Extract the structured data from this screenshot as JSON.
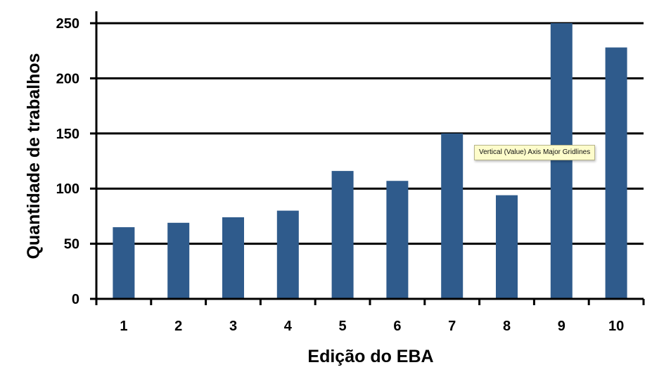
{
  "chart_data": {
    "type": "bar",
    "title": "",
    "xlabel": "Edição do EBA",
    "ylabel": "Quantidade de trabalhos",
    "categories": [
      "1",
      "2",
      "3",
      "4",
      "5",
      "6",
      "7",
      "8",
      "9",
      "10"
    ],
    "series": [
      {
        "values": [
          65,
          69,
          74,
          80,
          116,
          107,
          150,
          94,
          250,
          228
        ]
      }
    ],
    "ylim": [
      0,
      250
    ],
    "yticks": [
      "0",
      "50",
      "100",
      "150",
      "200",
      "250"
    ],
    "grid": "horizontal major gridlines",
    "legend": "none",
    "bar_color": "#2f5b8c"
  },
  "tooltip": {
    "text": "Vertical (Value) Axis Major Gridlines"
  }
}
